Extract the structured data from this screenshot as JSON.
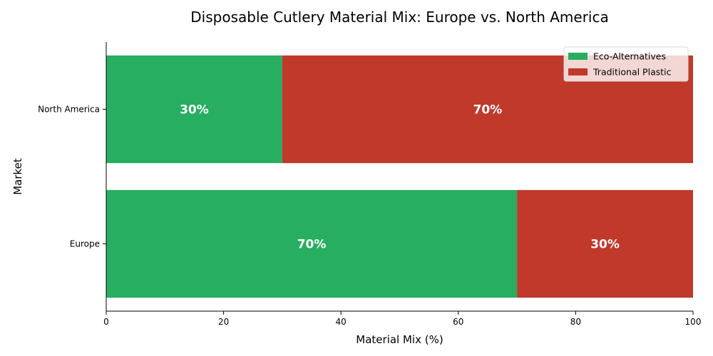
{
  "chart_data": {
    "type": "bar",
    "orientation": "horizontal",
    "stacked": true,
    "title": "Disposable Cutlery Material Mix: Europe vs. North America",
    "xlabel": "Material Mix (%)",
    "ylabel": "Market",
    "categories": [
      "Europe",
      "North America"
    ],
    "series": [
      {
        "name": "Eco-Alternatives",
        "values": [
          70,
          30
        ],
        "labels": [
          "70%",
          "30%"
        ],
        "color": "#27ae60"
      },
      {
        "name": "Traditional Plastic",
        "values": [
          30,
          70
        ],
        "labels": [
          "30%",
          "70%"
        ],
        "color": "#c0392b"
      }
    ],
    "xlim": [
      0,
      100
    ],
    "xticks": [
      0,
      20,
      40,
      60,
      80,
      100
    ],
    "grid": false,
    "legend_position": "top-right"
  }
}
